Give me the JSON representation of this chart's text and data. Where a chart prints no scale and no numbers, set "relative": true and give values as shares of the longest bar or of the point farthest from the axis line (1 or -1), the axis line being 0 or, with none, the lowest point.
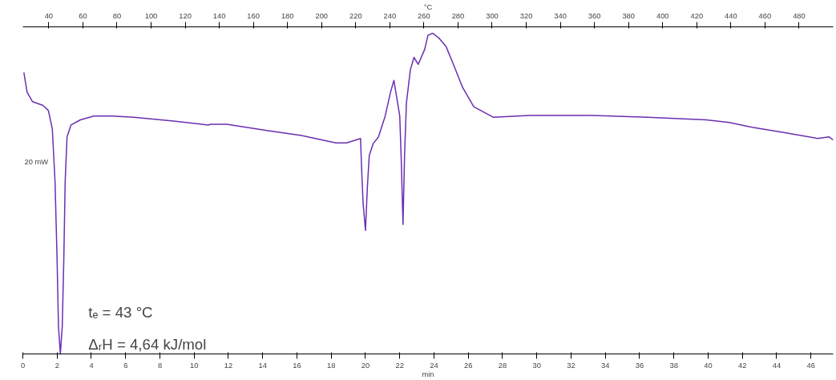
{
  "chart_data": {
    "type": "line",
    "relative": true,
    "xlabel": "min",
    "x2label": "°C",
    "ylabel": "20 mW",
    "xlim": [
      0,
      47.3
    ],
    "xticks": [
      0,
      2,
      4,
      6,
      8,
      10,
      12,
      14,
      16,
      18,
      20,
      22,
      24,
      26,
      28,
      30,
      32,
      34,
      36,
      38,
      40,
      42,
      44,
      46
    ],
    "x2lim": [
      24.8,
      500
    ],
    "x2ticks": [
      40,
      60,
      80,
      100,
      120,
      140,
      160,
      180,
      200,
      220,
      240,
      260,
      280,
      300,
      320,
      340,
      360,
      380,
      400,
      420,
      440,
      460,
      480
    ],
    "grid": false,
    "marker": "none",
    "line_style": "solid",
    "annotations": [
      "tₑ = 43 °C",
      "ΔᵣH = 4,64 kJ/mol"
    ],
    "series": [
      {
        "color": "#6a2fb0",
        "x": [
          0.06,
          0.25,
          0.56,
          1.18,
          1.49,
          1.72,
          1.88,
          2.0,
          2.08,
          2.19,
          2.3,
          2.39,
          2.47,
          2.58,
          2.81,
          3.36,
          4.14,
          5.22,
          6.47,
          8.8,
          10.82,
          10.97,
          11.9,
          14.23,
          16.26,
          18.27,
          18.9,
          19.71,
          19.78,
          19.86,
          20.0,
          20.11,
          20.22,
          20.45,
          20.76,
          21.15,
          21.46,
          21.66,
          21.85,
          22.0,
          22.08,
          22.19,
          22.28,
          22.39,
          22.62,
          22.83,
          23.08,
          23.45,
          23.65,
          23.93,
          24.31,
          24.7,
          25.17,
          25.66,
          26.32,
          27.47,
          29.57,
          33.2,
          36.45,
          39.89,
          41.23,
          42.56,
          44.48,
          46.39,
          47.05,
          47.3
        ],
        "values": [
          0.878,
          0.816,
          0.787,
          0.775,
          0.759,
          0.702,
          0.537,
          0.291,
          0.086,
          0,
          0.086,
          0.291,
          0.537,
          0.677,
          0.714,
          0.73,
          0.742,
          0.742,
          0.738,
          0.726,
          0.714,
          0.716,
          0.716,
          0.697,
          0.681,
          0.658,
          0.658,
          0.672,
          0.57,
          0.471,
          0.385,
          0.52,
          0.619,
          0.656,
          0.677,
          0.742,
          0.816,
          0.853,
          0.791,
          0.742,
          0.619,
          0.404,
          0.619,
          0.783,
          0.886,
          0.925,
          0.903,
          0.949,
          0.994,
          1,
          0.984,
          0.959,
          0.898,
          0.832,
          0.771,
          0.738,
          0.744,
          0.744,
          0.738,
          0.73,
          0.722,
          0.707,
          0.69,
          0.672,
          0.677,
          0.667
        ]
      }
    ]
  }
}
